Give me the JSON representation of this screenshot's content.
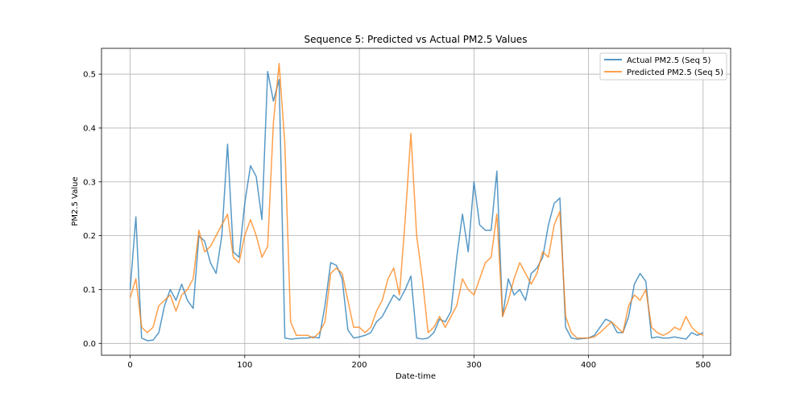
{
  "chart_data": {
    "type": "line",
    "title": "Sequence 5: Predicted vs Actual PM2.5 Values",
    "xlabel": "Date-time",
    "ylabel": "PM2.5 Value",
    "xlim": [
      -25,
      524
    ],
    "ylim": [
      -0.022,
      0.548
    ],
    "x_ticks": [
      0,
      100,
      200,
      300,
      400,
      500
    ],
    "x_tick_labels": [
      "0",
      "100",
      "200",
      "300",
      "400",
      "500"
    ],
    "y_ticks": [
      0.0,
      0.1,
      0.2,
      0.3,
      0.4,
      0.5
    ],
    "y_tick_labels": [
      "0.0",
      "0.1",
      "0.2",
      "0.3",
      "0.4",
      "0.5"
    ],
    "grid": true,
    "legend_position": "top-right",
    "x": [
      0,
      5,
      10,
      15,
      20,
      25,
      30,
      35,
      40,
      45,
      50,
      55,
      60,
      65,
      70,
      75,
      80,
      85,
      90,
      95,
      100,
      105,
      110,
      115,
      120,
      125,
      130,
      135,
      140,
      145,
      150,
      155,
      160,
      165,
      170,
      175,
      180,
      185,
      190,
      195,
      200,
      205,
      210,
      215,
      220,
      225,
      230,
      235,
      240,
      245,
      250,
      255,
      260,
      265,
      270,
      275,
      280,
      285,
      290,
      295,
      300,
      305,
      310,
      315,
      320,
      325,
      330,
      335,
      340,
      345,
      350,
      355,
      360,
      365,
      370,
      375,
      380,
      385,
      390,
      395,
      400,
      405,
      410,
      415,
      420,
      425,
      430,
      435,
      440,
      445,
      450,
      455,
      460,
      465,
      470,
      475,
      480,
      485,
      490,
      495,
      500
    ],
    "series": [
      {
        "name": "Actual PM2.5 (Seq 5)",
        "color": "#1f77b4",
        "values": [
          0.1,
          0.235,
          0.01,
          0.005,
          0.006,
          0.02,
          0.07,
          0.1,
          0.08,
          0.11,
          0.08,
          0.065,
          0.2,
          0.19,
          0.15,
          0.13,
          0.2,
          0.37,
          0.17,
          0.16,
          0.26,
          0.33,
          0.31,
          0.23,
          0.505,
          0.45,
          0.49,
          0.01,
          0.008,
          0.009,
          0.01,
          0.01,
          0.012,
          0.01,
          0.07,
          0.15,
          0.145,
          0.12,
          0.025,
          0.01,
          0.012,
          0.015,
          0.02,
          0.04,
          0.05,
          0.07,
          0.09,
          0.08,
          0.1,
          0.125,
          0.01,
          0.008,
          0.01,
          0.02,
          0.045,
          0.04,
          0.06,
          0.16,
          0.24,
          0.17,
          0.3,
          0.22,
          0.21,
          0.21,
          0.32,
          0.05,
          0.12,
          0.09,
          0.1,
          0.08,
          0.13,
          0.14,
          0.16,
          0.22,
          0.26,
          0.27,
          0.03,
          0.01,
          0.008,
          0.009,
          0.01,
          0.015,
          0.03,
          0.045,
          0.04,
          0.02,
          0.02,
          0.05,
          0.11,
          0.13,
          0.115,
          0.01,
          0.012,
          0.01,
          0.01,
          0.012,
          0.01,
          0.008,
          0.02,
          0.015,
          0.02
        ]
      },
      {
        "name": "Predicted PM2.5 (Seq 5)",
        "color": "#ff7f0e",
        "values": [
          0.085,
          0.12,
          0.03,
          0.02,
          0.03,
          0.07,
          0.08,
          0.09,
          0.06,
          0.09,
          0.1,
          0.12,
          0.21,
          0.17,
          0.18,
          0.2,
          0.22,
          0.24,
          0.16,
          0.15,
          0.2,
          0.23,
          0.2,
          0.16,
          0.18,
          0.41,
          0.52,
          0.37,
          0.04,
          0.015,
          0.015,
          0.015,
          0.01,
          0.02,
          0.04,
          0.13,
          0.14,
          0.13,
          0.08,
          0.03,
          0.03,
          0.02,
          0.03,
          0.06,
          0.08,
          0.12,
          0.14,
          0.09,
          0.23,
          0.39,
          0.2,
          0.12,
          0.02,
          0.03,
          0.05,
          0.03,
          0.05,
          0.07,
          0.12,
          0.1,
          0.09,
          0.12,
          0.15,
          0.16,
          0.24,
          0.05,
          0.08,
          0.12,
          0.15,
          0.13,
          0.11,
          0.13,
          0.17,
          0.16,
          0.22,
          0.245,
          0.05,
          0.02,
          0.01,
          0.01,
          0.01,
          0.012,
          0.02,
          0.03,
          0.04,
          0.03,
          0.02,
          0.07,
          0.09,
          0.08,
          0.1,
          0.03,
          0.02,
          0.015,
          0.02,
          0.03,
          0.025,
          0.05,
          0.03,
          0.02,
          0.015
        ]
      }
    ]
  }
}
